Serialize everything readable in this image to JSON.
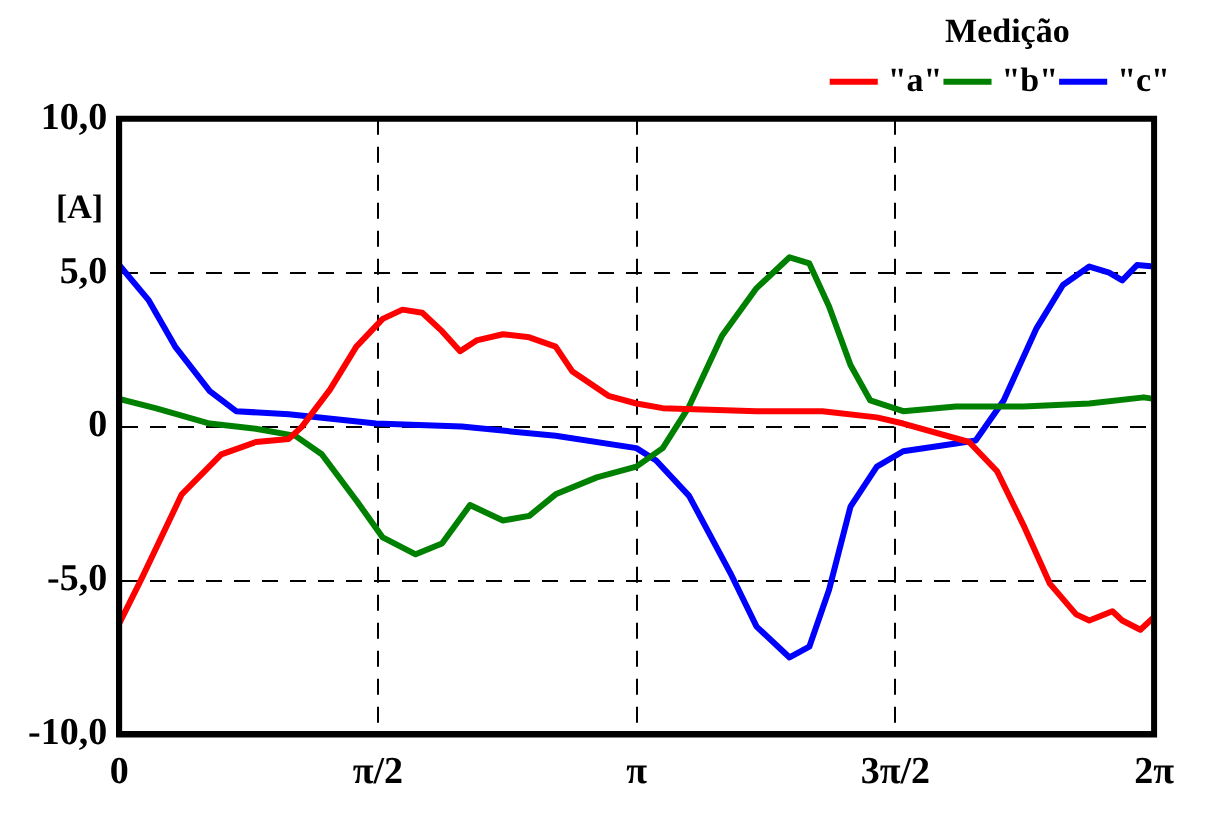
{
  "chart_data": {
    "type": "line",
    "ylabel": "[A]",
    "legend_title": "Medição",
    "legend": "top right",
    "grid": true,
    "line_style": "solid",
    "marker": "none",
    "xlim": [
      0,
      6.2832
    ],
    "ylim": [
      -10,
      10
    ],
    "xticks": [
      0,
      {
        "value": 1.5708,
        "label": "π/2"
      },
      {
        "value": 3.1416,
        "label": "π"
      },
      {
        "value": 4.7124,
        "label": "3π/2"
      },
      {
        "value": 6.2832,
        "label": "2π"
      }
    ],
    "yticks": [
      {
        "value": -10,
        "label": "-10,0"
      },
      {
        "value": -5,
        "label": "-5,0"
      },
      0,
      {
        "value": 5,
        "label": "5,0"
      },
      {
        "value": 10,
        "label": "10,0"
      }
    ],
    "series": [
      {
        "name": "\"a\"",
        "color": "#ff0000",
        "x": [
          0,
          0.14,
          0.38,
          0.62,
          0.83,
          1.03,
          1.11,
          1.28,
          1.44,
          1.6,
          1.72,
          1.84,
          1.96,
          2.07,
          2.17,
          2.33,
          2.49,
          2.65,
          2.75,
          2.97,
          3.14,
          3.3,
          3.87,
          4.27,
          4.6,
          4.76,
          5.16,
          5.33,
          5.49,
          5.65,
          5.81,
          5.89,
          6.03,
          6.09,
          6.2,
          6.28
        ],
        "values": [
          -6.4,
          -4.9,
          -2.2,
          -0.9,
          -0.5,
          -0.4,
          0,
          1.2,
          2.6,
          3.5,
          3.8,
          3.7,
          3.1,
          2.45,
          2.8,
          3.0,
          2.9,
          2.6,
          1.8,
          1.0,
          0.75,
          0.6,
          0.5,
          0.5,
          0.3,
          0.1,
          -0.5,
          -1.45,
          -3.2,
          -5.1,
          -6.1,
          -6.3,
          -6.0,
          -6.3,
          -6.6,
          -6.2
        ]
      },
      {
        "name": "\"b\"",
        "color": "#008000",
        "x": [
          0,
          0.22,
          0.55,
          0.83,
          1.07,
          1.23,
          1.44,
          1.6,
          1.8,
          1.96,
          2.13,
          2.33,
          2.49,
          2.65,
          2.9,
          3.14,
          3.3,
          3.46,
          3.66,
          3.87,
          4.07,
          4.19,
          4.31,
          4.44,
          4.56,
          4.76,
          5.08,
          5.49,
          5.89,
          6.22,
          6.28
        ],
        "values": [
          0.9,
          0.6,
          0.1,
          -0.07,
          -0.3,
          -0.9,
          -2.4,
          -3.6,
          -4.15,
          -3.8,
          -2.55,
          -3.05,
          -2.9,
          -2.2,
          -1.65,
          -1.3,
          -0.7,
          0.65,
          2.95,
          4.5,
          5.5,
          5.3,
          3.9,
          2.0,
          0.85,
          0.5,
          0.65,
          0.65,
          0.75,
          0.95,
          0.9
        ]
      },
      {
        "name": "\"c\"",
        "color": "#0000ff",
        "x": [
          0,
          0.18,
          0.34,
          0.55,
          0.71,
          1.03,
          1.56,
          2.08,
          2.65,
          3.14,
          3.26,
          3.46,
          3.71,
          3.87,
          4.07,
          4.19,
          4.31,
          4.44,
          4.6,
          4.76,
          5.08,
          5.2,
          5.37,
          5.57,
          5.73,
          5.89,
          6.01,
          6.09,
          6.18,
          6.28
        ],
        "values": [
          5.25,
          4.1,
          2.6,
          1.15,
          0.5,
          0.4,
          0.1,
          0,
          -0.3,
          -0.7,
          -1.1,
          -2.25,
          -4.75,
          -6.5,
          -7.5,
          -7.15,
          -5.3,
          -2.6,
          -1.3,
          -0.8,
          -0.55,
          -0.45,
          0.85,
          3.2,
          4.6,
          5.2,
          5.0,
          4.75,
          5.25,
          5.2
        ]
      }
    ]
  }
}
